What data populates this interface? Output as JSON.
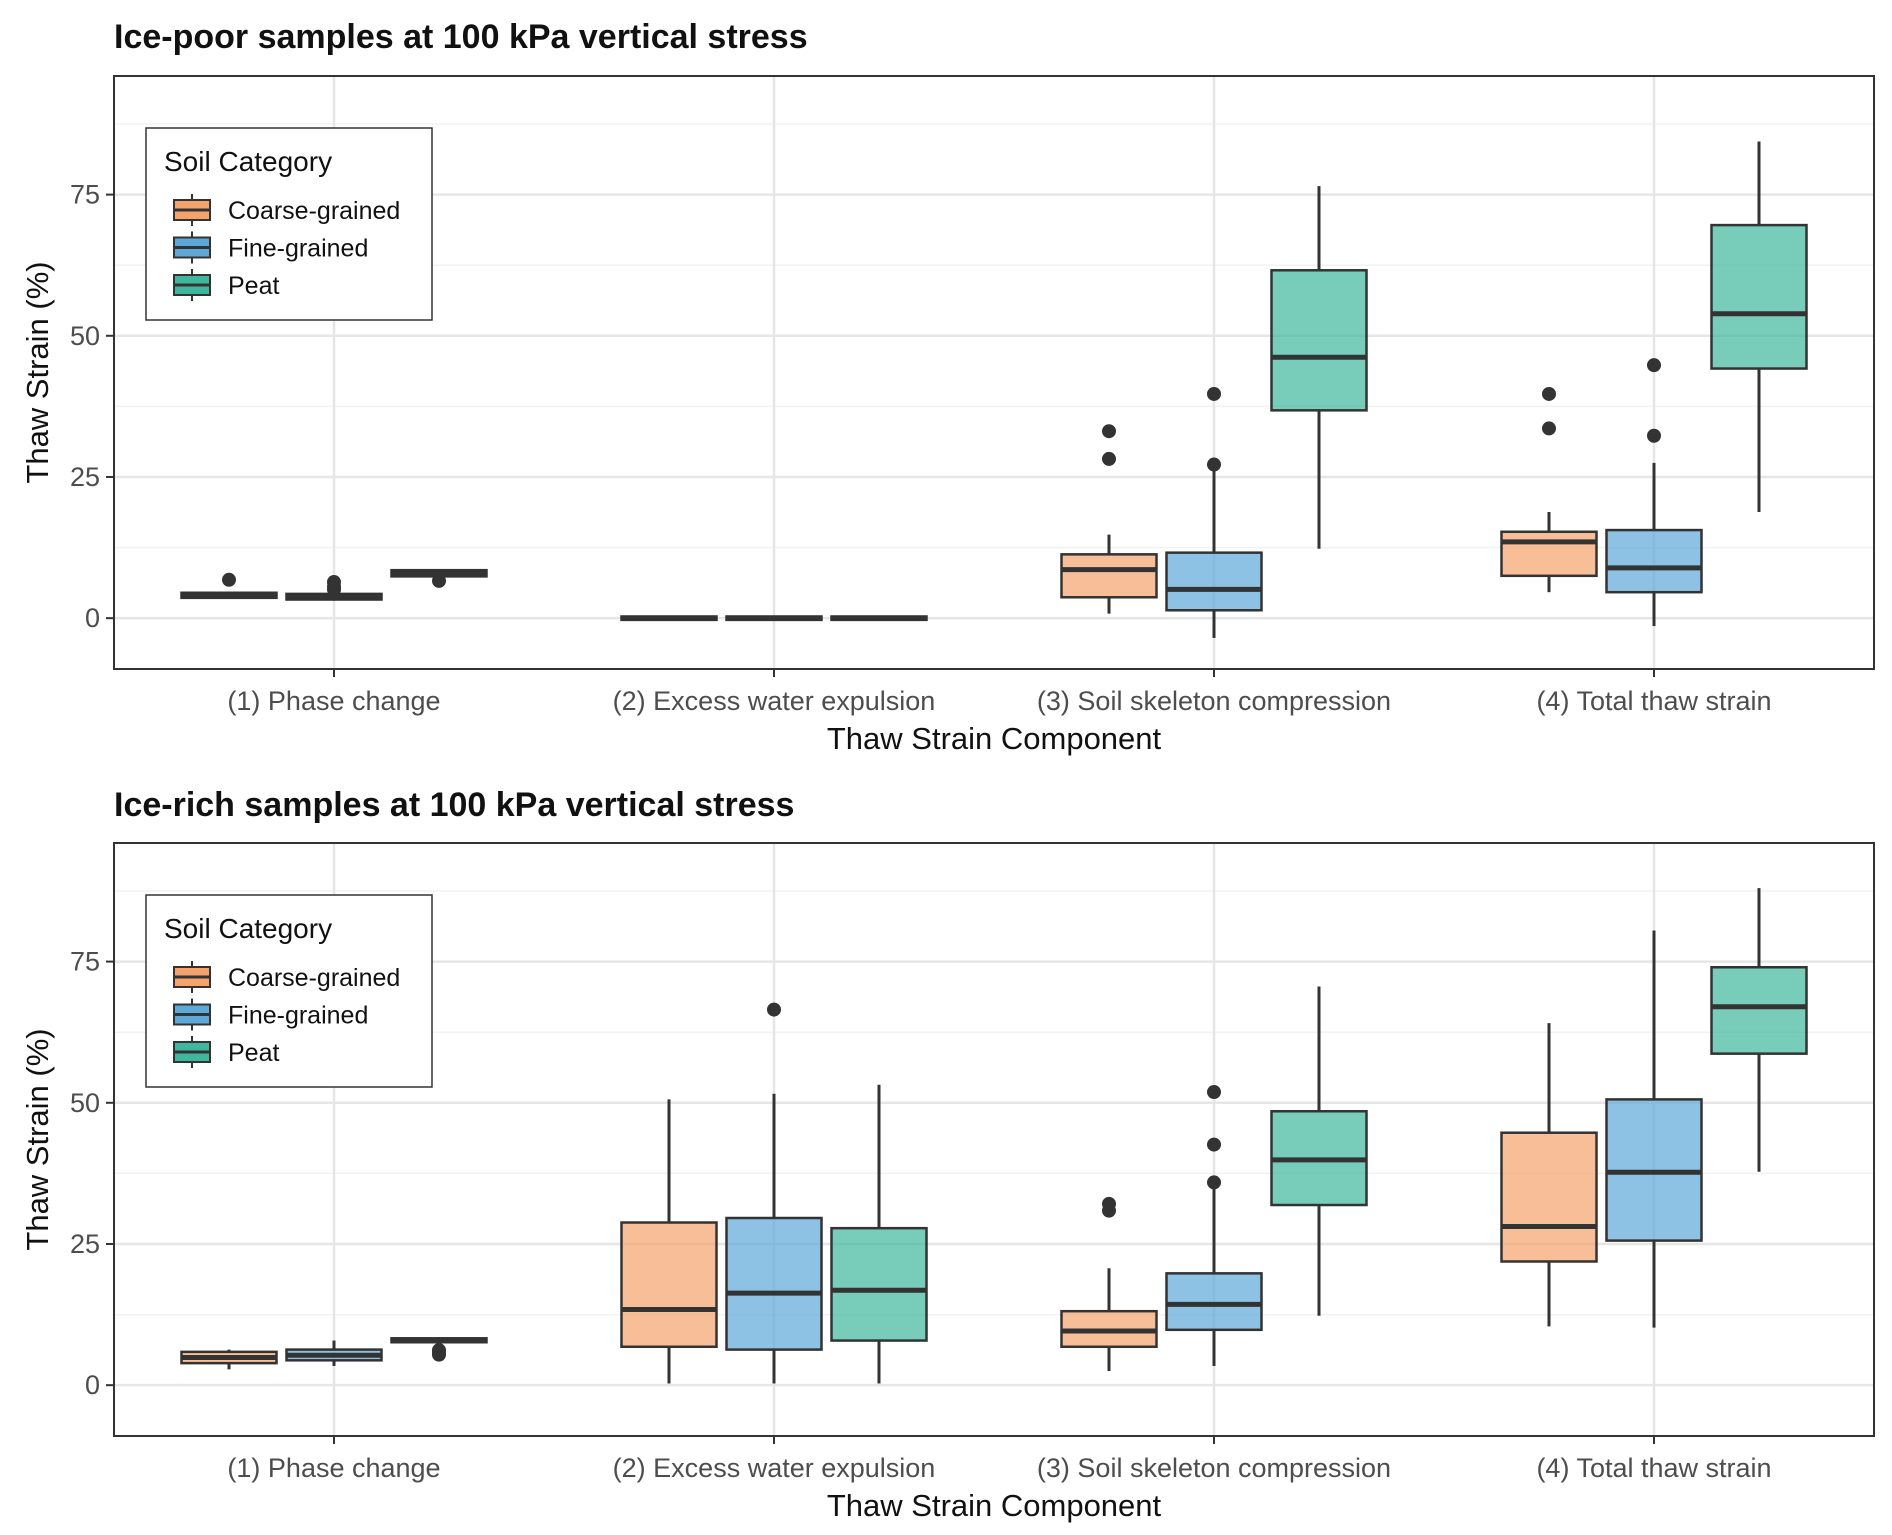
{
  "chart_data": [
    {
      "type": "box",
      "title": "Ice-poor samples at 100 kPa vertical stress",
      "xlabel": "Thaw Strain Component",
      "ylabel": "Thaw Strain (%)",
      "ylim": [
        -9,
        96
      ],
      "yticks": [
        0,
        25,
        50,
        75
      ],
      "grid": true,
      "legend": {
        "title": "Soil Category",
        "position": "top-left",
        "entries": [
          "Coarse-grained",
          "Fine-grained",
          "Peat"
        ]
      },
      "categories": [
        "(1) Phase change",
        "(2) Excess water expulsion",
        "(3) Soil skeleton compression",
        "(4) Total thaw strain"
      ],
      "series": [
        {
          "name": "Coarse-grained",
          "color": "#f4a36c",
          "boxes": [
            {
              "low": 3.6,
              "q1": 3.6,
              "median": 4.1,
              "q3": 4.5,
              "high": 4.6,
              "outliers": [
                6.8
              ]
            },
            {
              "low": -0.3,
              "q1": -0.3,
              "median": 0,
              "q3": 0.3,
              "high": 0.3,
              "outliers": []
            },
            {
              "low": 0.8,
              "q1": 3.7,
              "median": 8.6,
              "q3": 11.3,
              "high": 14.8,
              "outliers": [
                28.2,
                33.1
              ]
            },
            {
              "low": 4.6,
              "q1": 7.5,
              "median": 13.5,
              "q3": 15.3,
              "high": 18.8,
              "outliers": [
                33.6,
                39.7
              ]
            }
          ]
        },
        {
          "name": "Fine-grained",
          "color": "#5ea8d8",
          "boxes": [
            {
              "low": 3.1,
              "q1": 3.3,
              "median": 3.8,
              "q3": 4.3,
              "high": 4.6,
              "outliers": [
                5.1,
                5.6,
                6.4
              ]
            },
            {
              "low": -0.3,
              "q1": -0.3,
              "median": 0,
              "q3": 0.3,
              "high": 0.3,
              "outliers": []
            },
            {
              "low": -3.5,
              "q1": 1.4,
              "median": 5.1,
              "q3": 11.6,
              "high": 26.8,
              "outliers": [
                27.2,
                39.7
              ]
            },
            {
              "low": -1.4,
              "q1": 4.6,
              "median": 8.9,
              "q3": 15.6,
              "high": 27.5,
              "outliers": [
                32.3,
                44.8
              ]
            }
          ]
        },
        {
          "name": "Peat",
          "color": "#3fb79d",
          "boxes": [
            {
              "low": 7.1,
              "q1": 7.4,
              "median": 8.0,
              "q3": 8.5,
              "high": 8.6,
              "outliers": [
                6.6
              ]
            },
            {
              "low": -0.3,
              "q1": -0.3,
              "median": 0,
              "q3": 0.3,
              "high": 0.3,
              "outliers": []
            },
            {
              "low": 12.3,
              "q1": 36.8,
              "median": 46.2,
              "q3": 61.6,
              "high": 76.5,
              "outliers": []
            },
            {
              "low": 18.8,
              "q1": 44.2,
              "median": 53.9,
              "q3": 69.6,
              "high": 84.4,
              "outliers": []
            }
          ]
        }
      ]
    },
    {
      "type": "box",
      "title": "Ice-rich samples at 100 kPa vertical stress",
      "xlabel": "Thaw Strain Component",
      "ylabel": "Thaw Strain (%)",
      "ylim": [
        -9,
        96
      ],
      "yticks": [
        0,
        25,
        50,
        75
      ],
      "grid": true,
      "legend": {
        "title": "Soil Category",
        "position": "top-left",
        "entries": [
          "Coarse-grained",
          "Fine-grained",
          "Peat"
        ]
      },
      "categories": [
        "(1) Phase change",
        "(2) Excess water expulsion",
        "(3) Soil skeleton compression",
        "(4) Total thaw strain"
      ],
      "series": [
        {
          "name": "Coarse-grained",
          "color": "#f4a36c",
          "boxes": [
            {
              "low": 2.8,
              "q1": 3.9,
              "median": 4.9,
              "q3": 5.9,
              "high": 6.3,
              "outliers": []
            },
            {
              "low": 0.3,
              "q1": 6.8,
              "median": 13.4,
              "q3": 28.8,
              "high": 50.6,
              "outliers": []
            },
            {
              "low": 2.5,
              "q1": 6.8,
              "median": 9.6,
              "q3": 13.1,
              "high": 20.7,
              "outliers": [
                30.9,
                32.1
              ]
            },
            {
              "low": 10.4,
              "q1": 21.9,
              "median": 28.1,
              "q3": 44.7,
              "high": 64.1,
              "outliers": []
            }
          ]
        },
        {
          "name": "Fine-grained",
          "color": "#5ea8d8",
          "boxes": [
            {
              "low": 3.4,
              "q1": 4.4,
              "median": 5.3,
              "q3": 6.3,
              "high": 7.9,
              "outliers": []
            },
            {
              "low": 0.3,
              "q1": 6.3,
              "median": 16.3,
              "q3": 29.6,
              "high": 51.6,
              "outliers": [
                66.5
              ]
            },
            {
              "low": 3.4,
              "q1": 9.8,
              "median": 14.3,
              "q3": 19.8,
              "high": 35.6,
              "outliers": [
                35.9,
                42.6,
                51.9
              ]
            },
            {
              "low": 10.2,
              "q1": 25.6,
              "median": 37.7,
              "q3": 50.6,
              "high": 80.5,
              "outliers": []
            }
          ]
        },
        {
          "name": "Peat",
          "color": "#3fb79d",
          "boxes": [
            {
              "low": 7.1,
              "q1": 7.6,
              "median": 7.9,
              "q3": 8.3,
              "high": 8.5,
              "outliers": [
                5.4,
                5.8,
                6.2
              ]
            },
            {
              "low": 0.3,
              "q1": 7.9,
              "median": 16.8,
              "q3": 27.8,
              "high": 53.2,
              "outliers": []
            },
            {
              "low": 12.3,
              "q1": 31.9,
              "median": 39.9,
              "q3": 48.5,
              "high": 70.6,
              "outliers": []
            },
            {
              "low": 37.8,
              "q1": 58.7,
              "median": 67.0,
              "q3": 74.0,
              "high": 88.0,
              "outliers": []
            }
          ]
        }
      ]
    }
  ]
}
